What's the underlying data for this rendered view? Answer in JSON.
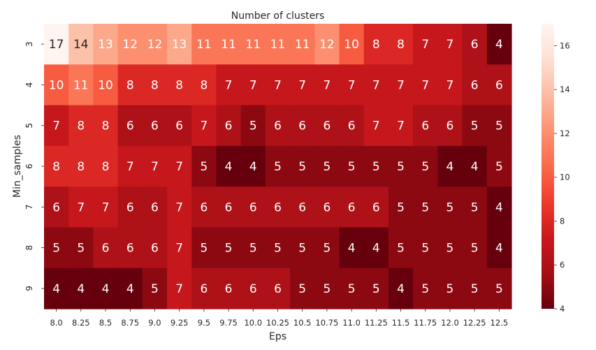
{
  "chart_data": {
    "type": "heatmap",
    "title": "Number of clusters",
    "xlabel": "Eps",
    "ylabel": "Min_samples",
    "x": [
      "8.0",
      "8.25",
      "8.5",
      "8.75",
      "9.0",
      "9.25",
      "9.5",
      "9.75",
      "10.0",
      "10.25",
      "10.5",
      "10.75",
      "11.0",
      "11.25",
      "11.5",
      "11.75",
      "12.0",
      "12.25",
      "12.5"
    ],
    "y": [
      "3",
      "4",
      "5",
      "6",
      "7",
      "8",
      "9"
    ],
    "values": [
      [
        17,
        14,
        13,
        12,
        12,
        13,
        11,
        11,
        11,
        11,
        11,
        12,
        10,
        8,
        8,
        7,
        7,
        6,
        4
      ],
      [
        10,
        11,
        10,
        8,
        8,
        8,
        8,
        7,
        7,
        7,
        7,
        7,
        7,
        7,
        7,
        7,
        7,
        6,
        6
      ],
      [
        7,
        8,
        8,
        6,
        6,
        6,
        7,
        6,
        5,
        6,
        6,
        6,
        6,
        7,
        7,
        6,
        6,
        5,
        5
      ],
      [
        8,
        8,
        8,
        7,
        7,
        7,
        5,
        4,
        4,
        5,
        5,
        5,
        5,
        5,
        5,
        5,
        4,
        4,
        5
      ],
      [
        6,
        7,
        7,
        6,
        6,
        7,
        6,
        6,
        6,
        6,
        6,
        6,
        6,
        6,
        5,
        5,
        5,
        5,
        4
      ],
      [
        5,
        5,
        6,
        6,
        6,
        7,
        5,
        5,
        5,
        5,
        5,
        5,
        4,
        4,
        5,
        5,
        5,
        5,
        4
      ],
      [
        4,
        4,
        4,
        4,
        5,
        7,
        6,
        6,
        6,
        6,
        5,
        5,
        5,
        5,
        4,
        5,
        5,
        5,
        5
      ]
    ],
    "colormap": "Reds",
    "colorbar": {
      "min": 4,
      "max": 17,
      "ticks": [
        "4",
        "6",
        "8",
        "10",
        "12",
        "14",
        "16"
      ]
    },
    "annotations": true
  }
}
